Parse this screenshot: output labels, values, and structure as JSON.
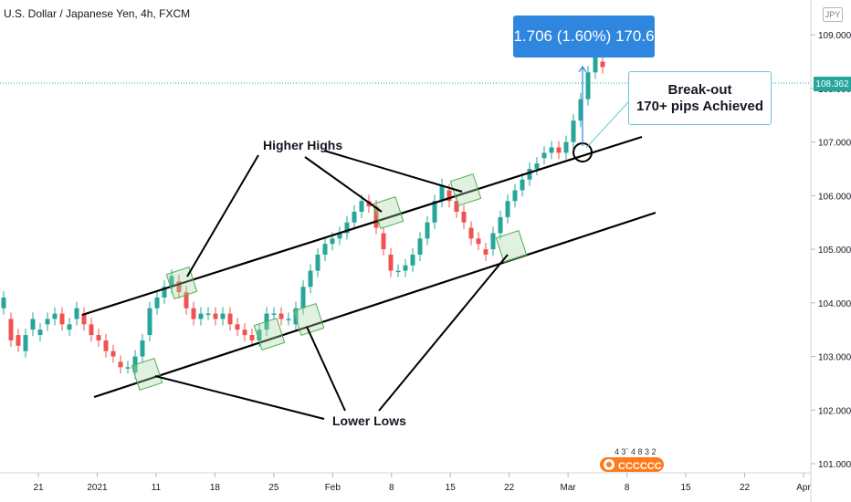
{
  "header": {
    "symbol": "U.S. Dollar / Japanese Yen, 4h, FXCM",
    "currency_badge": "JPY"
  },
  "measure_label": "1.706 (1.60%) 170.6",
  "callout": {
    "line1": "Break-out",
    "line2": "170+ pips Achieved"
  },
  "annotations": {
    "higher_highs": "Higher Highs",
    "lower_lows": "Lower Lows"
  },
  "last_price": "108.362",
  "logo_digits": "4 3` 4 8 3 2",
  "colors": {
    "up": "#26a69a",
    "down": "#ef5350",
    "channel": "#000000",
    "box": "#4caf50",
    "accent": "#2e86de"
  },
  "chart_data": {
    "type": "candlestick",
    "title": "U.S. Dollar / Japanese Yen, 4h, FXCM",
    "ylim": [
      100.83,
      109.65
    ],
    "y_ticks": [
      "101.000",
      "102.000",
      "103.000",
      "104.000",
      "105.000",
      "106.000",
      "107.000",
      "108.000",
      "109.000"
    ],
    "x_ticks": [
      "21",
      "2021",
      "11",
      "18",
      "25",
      "Feb",
      "8",
      "15",
      "22",
      "Mar",
      "8",
      "15",
      "22",
      "Apr"
    ],
    "series": [
      {
        "points": [
          [
            103.9,
            104.1
          ],
          [
            103.7,
            103.3
          ],
          [
            103.4,
            103.2
          ],
          [
            103.1,
            103.4
          ],
          [
            103.5,
            103.7
          ],
          [
            103.4,
            103.5
          ],
          [
            103.6,
            103.7
          ],
          [
            103.7,
            103.8
          ],
          [
            103.8,
            103.6
          ],
          [
            103.5,
            103.6
          ],
          [
            103.7,
            103.9
          ],
          [
            103.8,
            103.6
          ],
          [
            103.6,
            103.4
          ],
          [
            103.4,
            103.3
          ],
          [
            103.3,
            103.1
          ],
          [
            103.1,
            103.0
          ],
          [
            102.9,
            102.8
          ],
          [
            102.8,
            102.8
          ],
          [
            102.7,
            103.0
          ],
          [
            103.0,
            103.3
          ],
          [
            103.4,
            103.9
          ],
          [
            103.9,
            104.1
          ],
          [
            104.1,
            104.3
          ],
          [
            104.3,
            104.5
          ],
          [
            104.4,
            104.2
          ],
          [
            104.2,
            103.9
          ],
          [
            103.9,
            103.7
          ],
          [
            103.7,
            103.8
          ],
          [
            103.8,
            103.8
          ],
          [
            103.8,
            103.7
          ],
          [
            103.7,
            103.8
          ],
          [
            103.8,
            103.6
          ],
          [
            103.6,
            103.5
          ],
          [
            103.5,
            103.4
          ],
          [
            103.4,
            103.3
          ],
          [
            103.3,
            103.5
          ],
          [
            103.5,
            103.8
          ],
          [
            103.8,
            103.8
          ],
          [
            103.8,
            103.7
          ],
          [
            103.7,
            103.7
          ],
          [
            103.6,
            103.9
          ],
          [
            103.9,
            104.3
          ],
          [
            104.3,
            104.6
          ],
          [
            104.6,
            104.9
          ],
          [
            104.9,
            105.1
          ],
          [
            105.1,
            105.2
          ],
          [
            105.2,
            105.3
          ],
          [
            105.3,
            105.5
          ],
          [
            105.5,
            105.7
          ],
          [
            105.7,
            105.9
          ],
          [
            105.9,
            105.8
          ],
          [
            105.8,
            105.4
          ],
          [
            105.3,
            105.0
          ],
          [
            104.9,
            104.6
          ],
          [
            104.6,
            104.6
          ],
          [
            104.6,
            104.7
          ],
          [
            104.7,
            104.9
          ],
          [
            104.9,
            105.2
          ],
          [
            105.2,
            105.5
          ],
          [
            105.5,
            105.9
          ],
          [
            105.9,
            106.2
          ],
          [
            106.1,
            105.9
          ],
          [
            105.9,
            105.7
          ],
          [
            105.7,
            105.5
          ],
          [
            105.4,
            105.2
          ],
          [
            105.2,
            105.1
          ],
          [
            105.0,
            104.9
          ],
          [
            105.0,
            105.3
          ],
          [
            105.3,
            105.6
          ],
          [
            105.6,
            105.9
          ],
          [
            105.9,
            106.1
          ],
          [
            106.1,
            106.3
          ],
          [
            106.3,
            106.5
          ],
          [
            106.5,
            106.6
          ],
          [
            106.7,
            106.8
          ],
          [
            106.8,
            106.9
          ],
          [
            106.9,
            106.8
          ],
          [
            106.8,
            107.0
          ],
          [
            107.0,
            107.4
          ],
          [
            107.4,
            107.8
          ],
          [
            107.8,
            108.3
          ],
          [
            108.3,
            108.6
          ],
          [
            108.5,
            108.4
          ]
        ]
      }
    ]
  }
}
